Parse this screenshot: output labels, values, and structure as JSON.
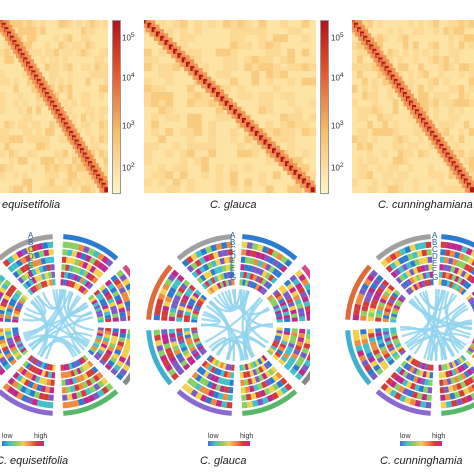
{
  "panels": [
    {
      "species": "equisetifolia",
      "circos_species": "C. equisetifolia"
    },
    {
      "species": "C. glauca",
      "circos_species": "C. glauca"
    },
    {
      "species": "C. cunninghamiana",
      "circos_species": "C. cunninghamia"
    }
  ],
  "colorbar_ticks": [
    "10",
    "10",
    "10",
    "10"
  ],
  "colorbar_exps": [
    "5",
    "4",
    "3",
    "2"
  ],
  "track_letters": [
    "A",
    "B",
    "C",
    "D",
    "E",
    "F",
    "G"
  ],
  "legend": {
    "low": "low",
    "high": "high"
  },
  "colors": {
    "heat_low": "#fff4c4",
    "heat_mid": "#f7c06a",
    "heat_high": "#b3141a",
    "link": "#8fd3ee"
  }
}
